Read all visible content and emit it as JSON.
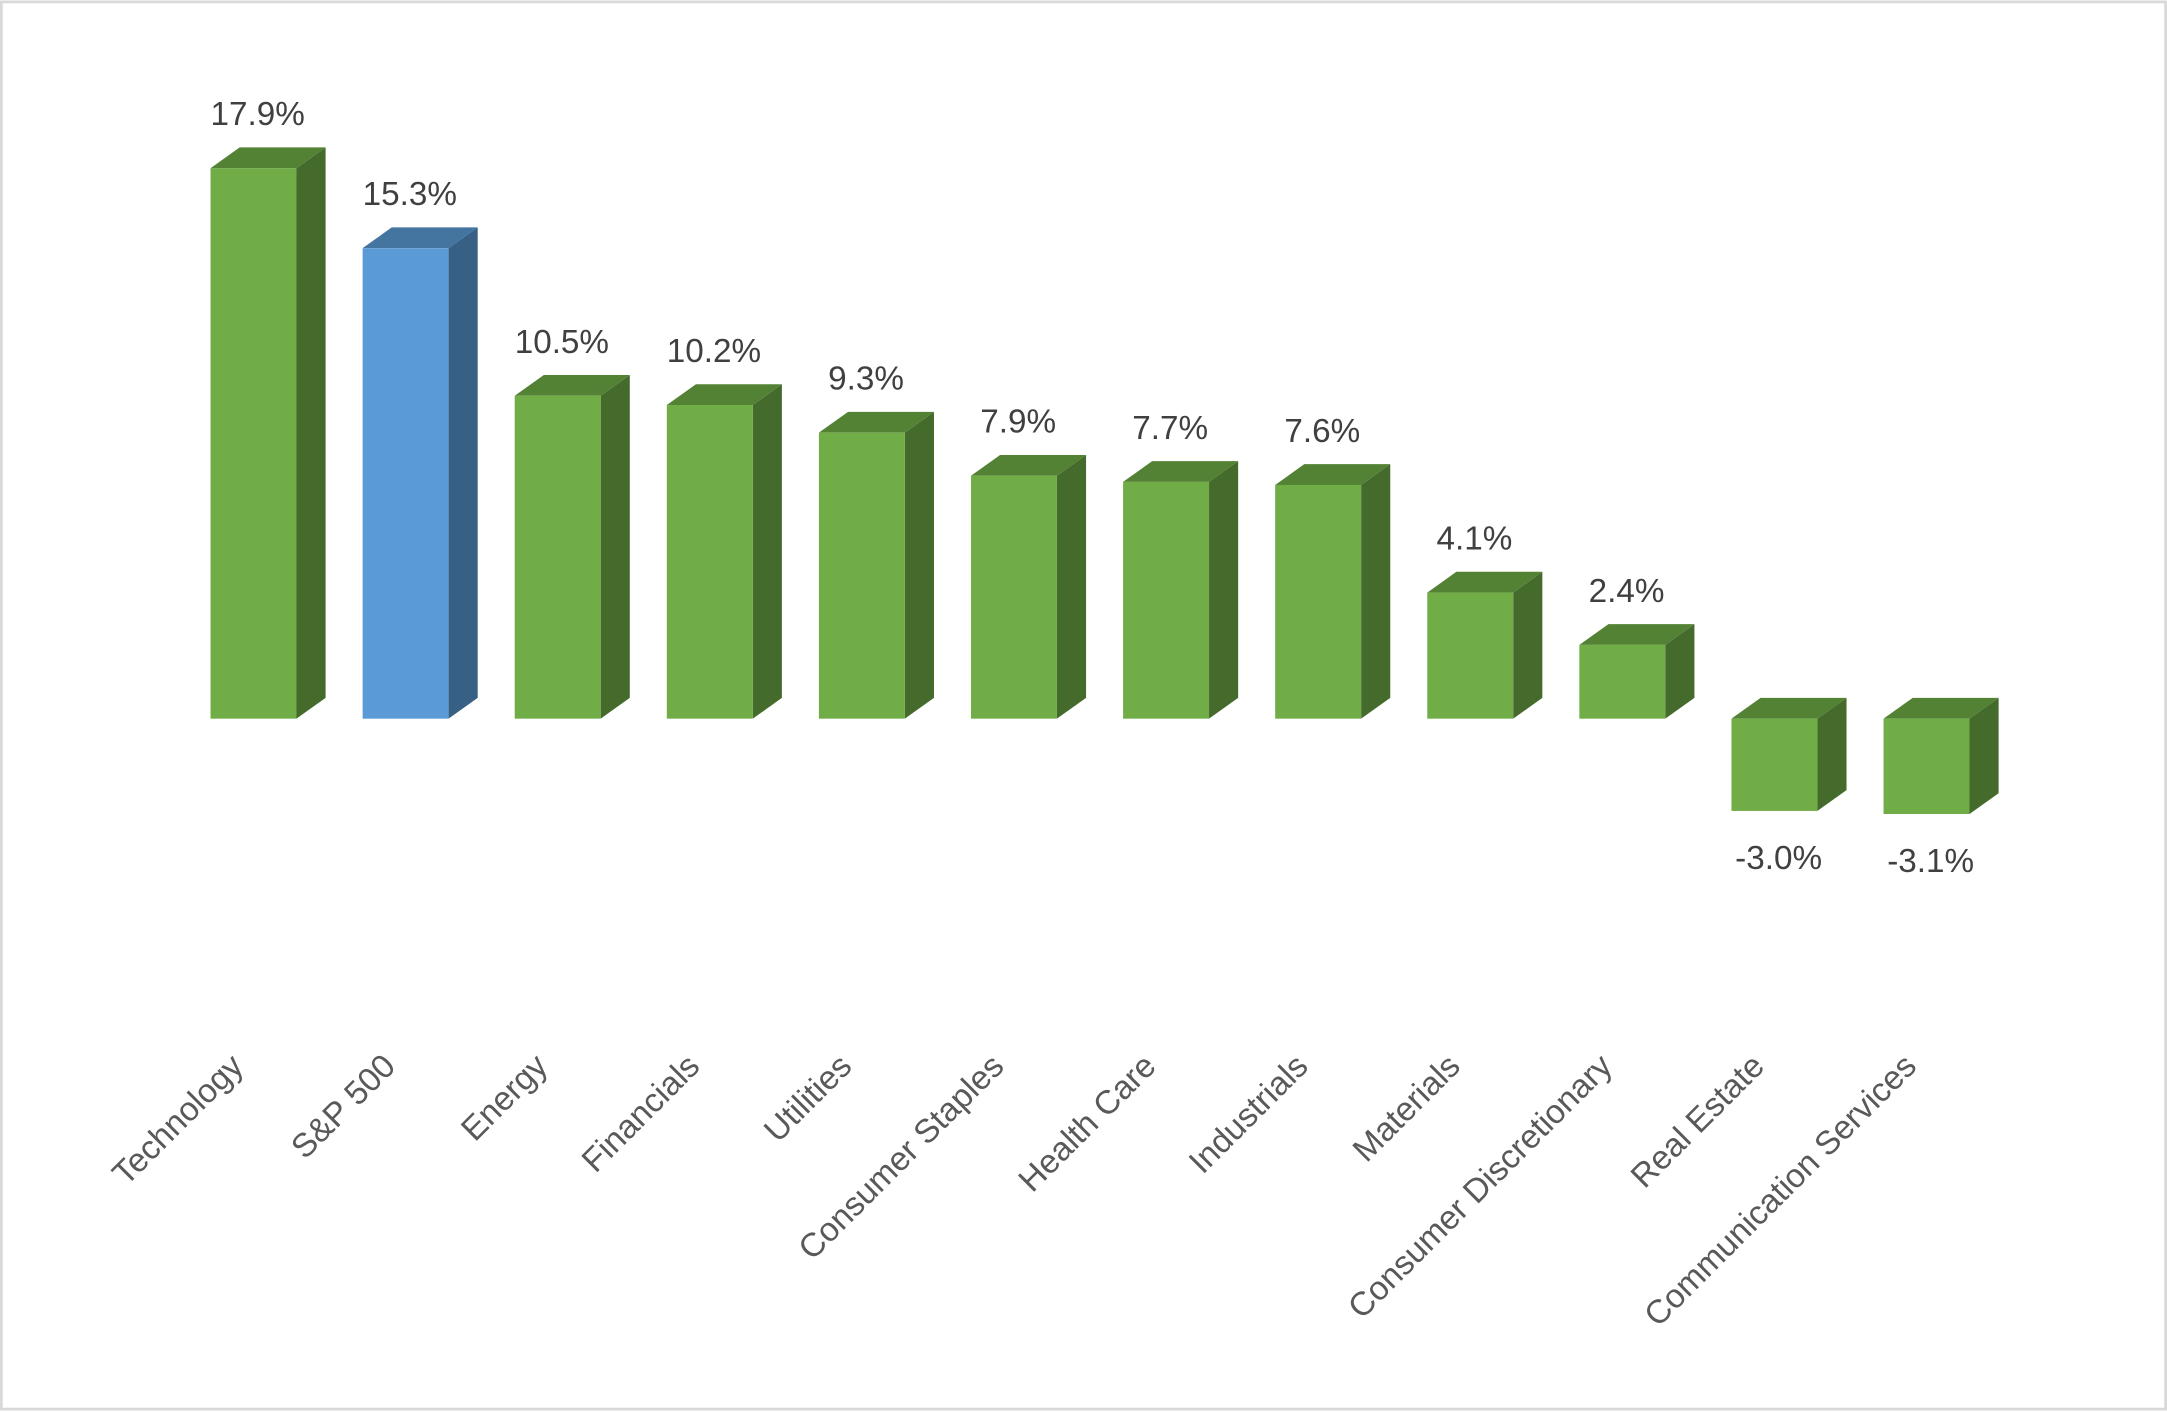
{
  "chart_data": {
    "type": "bar3d",
    "categories": [
      "Technology",
      "S&P 500",
      "Energy",
      "Financials",
      "Utilities",
      "Consumer Staples",
      "Health Care",
      "Industrials",
      "Materials",
      "Consumer Discretionary",
      "Real Estate",
      "Communication Services"
    ],
    "values": [
      17.9,
      15.3,
      10.5,
      10.2,
      9.3,
      7.9,
      7.7,
      7.6,
      4.1,
      2.4,
      -3.0,
      -3.1
    ],
    "value_labels": [
      "17.9%",
      "15.3%",
      "10.5%",
      "10.2%",
      "9.3%",
      "7.9%",
      "7.7%",
      "7.6%",
      "4.1%",
      "2.4%",
      "-3.0%",
      "-3.1%"
    ],
    "colors": [
      "#70ad47",
      "#5b9bd5",
      "#70ad47",
      "#70ad47",
      "#70ad47",
      "#70ad47",
      "#70ad47",
      "#70ad47",
      "#70ad47",
      "#70ad47",
      "#70ad47",
      "#70ad47"
    ],
    "ylim": [
      -5,
      20
    ],
    "grid": false
  }
}
